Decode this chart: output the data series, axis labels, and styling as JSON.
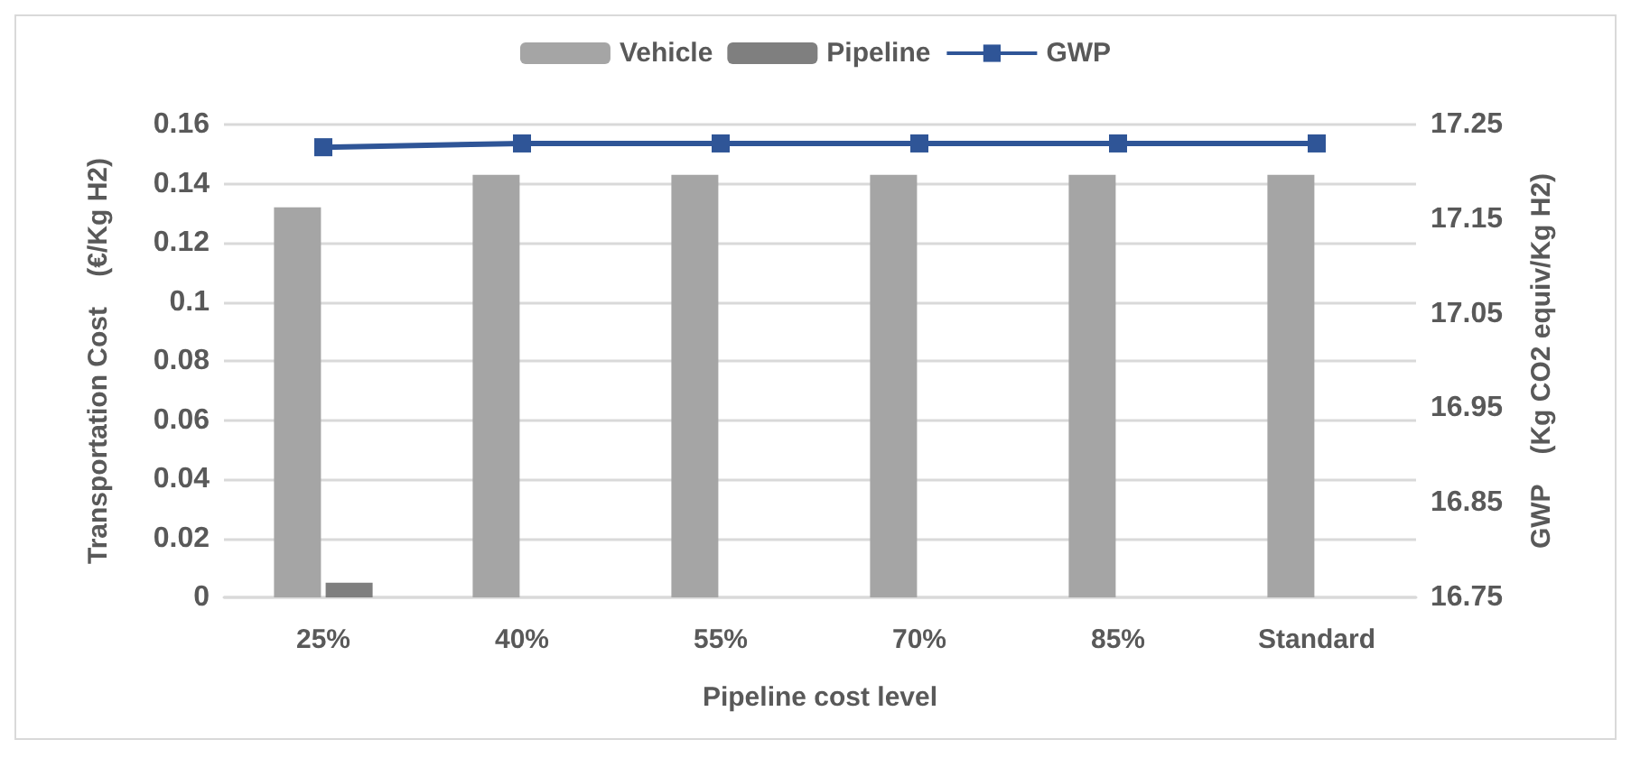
{
  "chart_data": {
    "type": "bar",
    "categories": [
      "25%",
      "40%",
      "55%",
      "70%",
      "85%",
      "Standard"
    ],
    "xlabel": "Pipeline cost level",
    "ylabel": "Transportation Cost    (€/Kg H2)",
    "y2label": "GWP    (Kg CO2 equiv/Kg H2)",
    "series": [
      {
        "name": "Vehicle",
        "color": "#a5a5a5",
        "values": [
          0.132,
          0.143,
          0.143,
          0.143,
          0.143,
          0.143
        ]
      },
      {
        "name": "Pipeline",
        "color": "#7f7f7f",
        "values": [
          0.005,
          0,
          0,
          0,
          0,
          0
        ]
      },
      {
        "name": "GWP",
        "type": "line",
        "axis": "y2",
        "color": "#2f5597",
        "marker": "square",
        "values": [
          17.226,
          17.23,
          17.23,
          17.23,
          17.23,
          17.23
        ]
      }
    ],
    "ylim": [
      0,
      0.16
    ],
    "yticks": [
      0,
      0.02,
      0.04,
      0.06,
      0.08,
      0.1,
      0.12,
      0.14,
      0.16
    ],
    "y2lim": [
      16.75,
      17.25
    ],
    "y2ticks": [
      16.75,
      16.85,
      16.95,
      17.05,
      17.15,
      17.25
    ],
    "grid": "y",
    "legend": "top"
  }
}
